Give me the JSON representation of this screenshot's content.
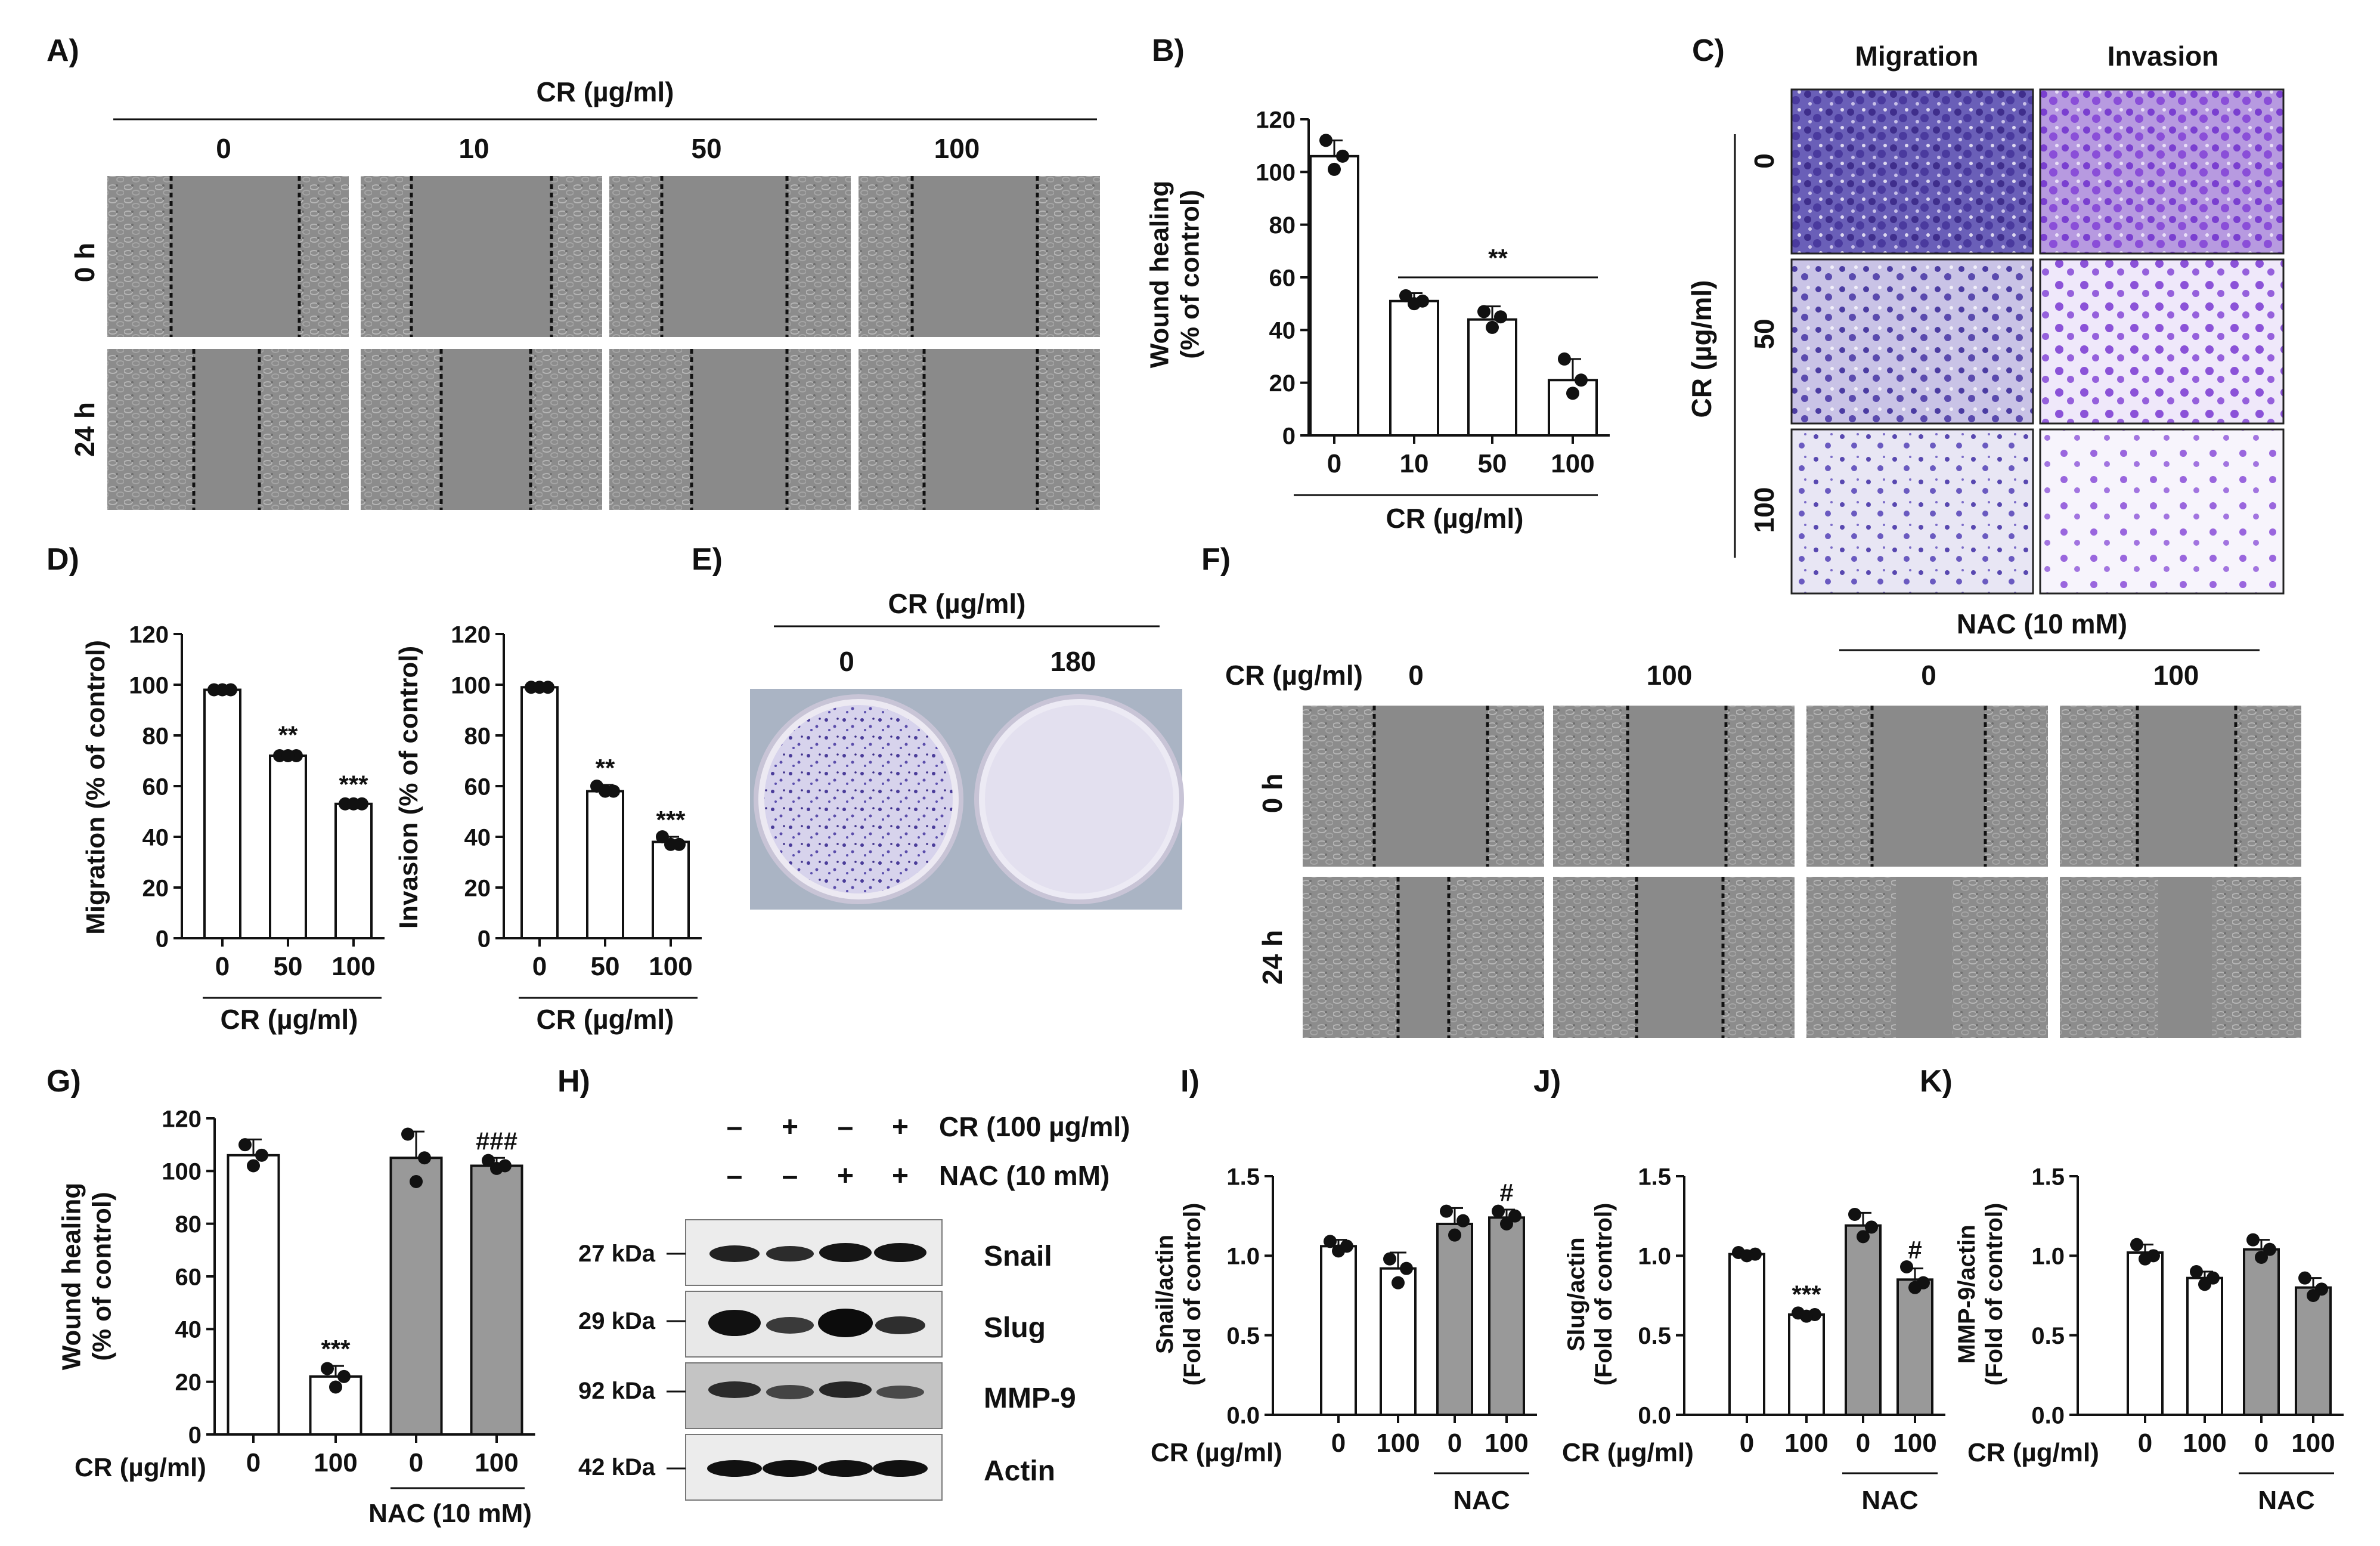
{
  "panel_letters": {
    "A": "A)",
    "B": "B)",
    "C": "C)",
    "D": "D)",
    "E": "E)",
    "F": "F)",
    "G": "G)",
    "H": "H)",
    "I": "I)",
    "J": "J)",
    "K": "K)"
  },
  "panelA": {
    "group_label": "CR (µg/ml)",
    "conditions": [
      "0",
      "10",
      "50",
      "100"
    ],
    "rows": [
      "0 h",
      "24 h"
    ]
  },
  "panelC": {
    "cols": [
      "Migration",
      "Invasion"
    ],
    "group_label": "CR (µg/ml)",
    "rows": [
      "0",
      "50",
      "100"
    ]
  },
  "panelE": {
    "group_label": "CR (µg/ml)",
    "conditions": [
      "0",
      "180"
    ]
  },
  "panelF": {
    "nac_label": "NAC (10 mM)",
    "row_label": "CR (µg/ml)",
    "conditions": [
      "0",
      "100",
      "0",
      "100"
    ],
    "rows": [
      "0 h",
      "24 h"
    ]
  },
  "panelH": {
    "treatments": [
      {
        "label": "CR (100 µg/ml)",
        "signs": [
          "–",
          "+",
          "–",
          "+"
        ]
      },
      {
        "label": "NAC (10 mM)",
        "signs": [
          "–",
          "–",
          "+",
          "+"
        ]
      }
    ],
    "blots": [
      {
        "mw": "27 kDa",
        "name": "Snail"
      },
      {
        "mw": "29 kDa",
        "name": "Slug"
      },
      {
        "mw": "92 kDa",
        "name": "MMP-9"
      },
      {
        "mw": "42 kDa",
        "name": "Actin"
      }
    ]
  },
  "chart_data": [
    {
      "id": "B",
      "type": "bar",
      "categories": [
        "0",
        "10",
        "50",
        "100"
      ],
      "values": [
        106,
        51,
        44,
        21
      ],
      "points": [
        [
          112,
          106,
          101
        ],
        [
          53,
          51,
          50
        ],
        [
          47,
          45,
          41
        ],
        [
          29,
          21,
          16
        ]
      ],
      "errors": [
        6,
        3,
        5,
        8
      ],
      "ylabel": "Wound healing\n(% of control)",
      "xlabel": "CR (µg/ml)",
      "ylim": [
        0,
        120
      ],
      "yticks": [
        0,
        20,
        40,
        60,
        80,
        100,
        120
      ],
      "bar_colors": [
        "#ffffff",
        "#ffffff",
        "#ffffff",
        "#ffffff"
      ],
      "significance": "**"
    },
    {
      "id": "D1",
      "type": "bar",
      "categories": [
        "0",
        "50",
        "100"
      ],
      "values": [
        98,
        72,
        53
      ],
      "points": [
        [
          98,
          98,
          98
        ],
        [
          72,
          72,
          72
        ],
        [
          53,
          53,
          53
        ]
      ],
      "errors": [
        1,
        1.5,
        1
      ],
      "annotations": [
        "",
        "**",
        "***"
      ],
      "ylabel": "Migration (% of control)",
      "xlabel": "CR (µg/ml)",
      "ylim": [
        0,
        120
      ],
      "yticks": [
        0,
        20,
        40,
        60,
        80,
        100,
        120
      ]
    },
    {
      "id": "D2",
      "type": "bar",
      "categories": [
        "0",
        "50",
        "100"
      ],
      "values": [
        99,
        58,
        38
      ],
      "points": [
        [
          99,
          99,
          99
        ],
        [
          60,
          58,
          58
        ],
        [
          40,
          37,
          37
        ]
      ],
      "errors": [
        1,
        2.5,
        2
      ],
      "annotations": [
        "",
        "**",
        "***"
      ],
      "ylabel": "Invasion (% of control)",
      "xlabel": "CR (µg/ml)",
      "ylim": [
        0,
        120
      ],
      "yticks": [
        0,
        20,
        40,
        60,
        80,
        100,
        120
      ]
    },
    {
      "id": "G",
      "type": "bar",
      "categories": [
        "0",
        "100",
        "0",
        "100"
      ],
      "values": [
        106,
        22,
        105,
        102
      ],
      "points": [
        [
          110,
          106,
          102
        ],
        [
          25,
          22,
          18
        ],
        [
          114,
          105,
          96
        ],
        [
          104,
          102,
          101
        ]
      ],
      "errors": [
        6,
        4,
        10,
        3
      ],
      "annotations": [
        "",
        "***",
        "",
        "###"
      ],
      "bar_colors": [
        "#ffffff",
        "#ffffff",
        "#999999",
        "#999999"
      ],
      "ylabel": "Wound healing\n(% of control)",
      "xlabel": "CR (µg/ml)",
      "group_label": "NAC (10 mM)",
      "ylim": [
        0,
        120
      ],
      "yticks": [
        0,
        20,
        40,
        60,
        80,
        100,
        120
      ]
    },
    {
      "id": "I",
      "type": "bar",
      "categories": [
        "0",
        "100",
        "0",
        "100"
      ],
      "values": [
        1.06,
        0.92,
        1.2,
        1.24
      ],
      "points": [
        [
          1.09,
          1.06,
          1.03
        ],
        [
          0.98,
          0.92,
          0.83
        ],
        [
          1.28,
          1.22,
          1.13
        ],
        [
          1.28,
          1.25,
          1.2
        ]
      ],
      "errors": [
        0.04,
        0.1,
        0.1,
        0.05
      ],
      "annotations": [
        "",
        "",
        "",
        "#"
      ],
      "bar_colors": [
        "#ffffff",
        "#ffffff",
        "#999999",
        "#999999"
      ],
      "ylabel": "Snail/actin\n(Fold of control)",
      "xlabel": "CR (µg/ml)",
      "group_label": "NAC",
      "ylim": [
        0,
        1.5
      ],
      "yticks": [
        0,
        0.5,
        1.0,
        1.5
      ]
    },
    {
      "id": "J",
      "type": "bar",
      "categories": [
        "0",
        "100",
        "0",
        "100"
      ],
      "values": [
        1.01,
        0.63,
        1.19,
        0.85
      ],
      "points": [
        [
          1.02,
          1.01,
          1.0
        ],
        [
          0.64,
          0.63,
          0.62
        ],
        [
          1.26,
          1.18,
          1.12
        ],
        [
          0.93,
          0.83,
          0.8
        ]
      ],
      "errors": [
        0.01,
        0.02,
        0.08,
        0.07
      ],
      "annotations": [
        "",
        "***",
        "",
        "#"
      ],
      "bar_colors": [
        "#ffffff",
        "#ffffff",
        "#999999",
        "#999999"
      ],
      "ylabel": "Slug/actin\n(Fold of control)",
      "xlabel": "CR (µg/ml)",
      "group_label": "NAC",
      "ylim": [
        0,
        1.5
      ],
      "yticks": [
        0,
        0.5,
        1.0,
        1.5
      ]
    },
    {
      "id": "K",
      "type": "bar",
      "categories": [
        "0",
        "100",
        "0",
        "100"
      ],
      "values": [
        1.02,
        0.86,
        1.04,
        0.8
      ],
      "points": [
        [
          1.07,
          1.0,
          0.98
        ],
        [
          0.9,
          0.86,
          0.82
        ],
        [
          1.1,
          1.04,
          0.99
        ],
        [
          0.86,
          0.79,
          0.75
        ]
      ],
      "errors": [
        0.05,
        0.04,
        0.06,
        0.06
      ],
      "annotations": [
        "",
        "",
        "",
        ""
      ],
      "bar_colors": [
        "#ffffff",
        "#ffffff",
        "#999999",
        "#999999"
      ],
      "ylabel": "MMP-9/actin\n(Fold of control)",
      "xlabel": "CR (µg/ml)",
      "group_label": "NAC",
      "ylim": [
        0,
        1.5
      ],
      "yticks": [
        0,
        0.5,
        1.0,
        1.5
      ]
    }
  ]
}
